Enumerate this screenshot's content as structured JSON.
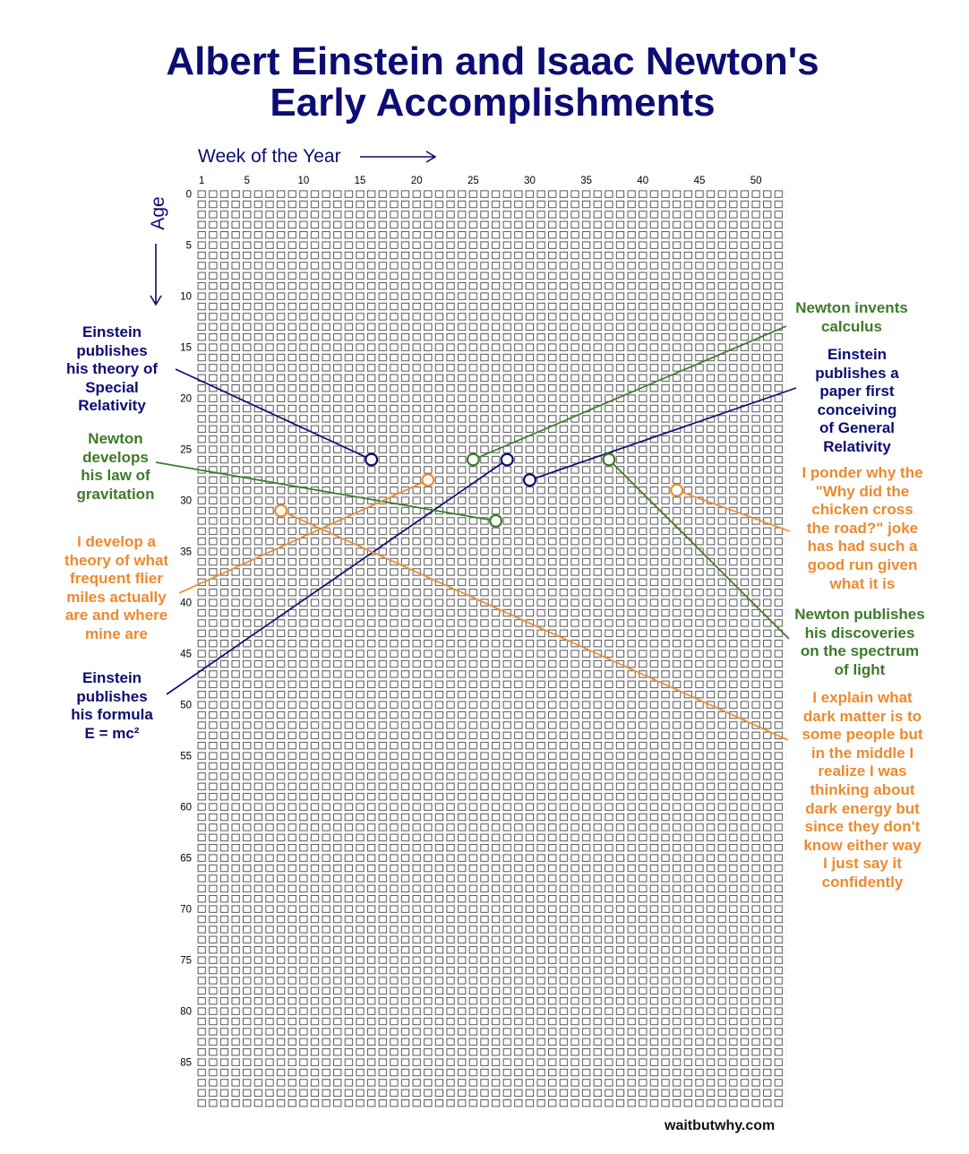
{
  "title": {
    "line1": "Albert Einstein and Isaac Newton's",
    "line2": "Early Accomplishments"
  },
  "colors": {
    "einstein": "#0c0c73",
    "newton": "#3d7a2a",
    "author": "#ec8a2e",
    "grid": "#444444"
  },
  "chart_data": {
    "type": "scatter",
    "xlabel": "Week of the Year",
    "ylabel": "Age",
    "x_ticks": [
      1,
      5,
      10,
      15,
      20,
      25,
      30,
      35,
      40,
      45,
      50
    ],
    "y_ticks": [
      0,
      5,
      10,
      15,
      20,
      25,
      30,
      35,
      40,
      45,
      50,
      55,
      60,
      65,
      70,
      75,
      80,
      85
    ],
    "xlim": [
      1,
      52
    ],
    "ylim": [
      0,
      89
    ],
    "grid": "one box per week of life",
    "series": [
      {
        "name": "Einstein",
        "color": "#0c0c73",
        "points": [
          {
            "week": 16,
            "age": 26,
            "label": "Einstein\npublishes\nhis theory of\nSpecial\nRelativity"
          },
          {
            "week": 28,
            "age": 26,
            "label": "Einstein\npublishes\nhis formula\nE = mc²"
          },
          {
            "week": 30,
            "age": 28,
            "label": "Einstein\npublishes a\npaper first\nconceiving\nof General\nRelativity"
          }
        ]
      },
      {
        "name": "Newton",
        "color": "#3d7a2a",
        "points": [
          {
            "week": 25,
            "age": 26,
            "label": "Newton invents\ncalculus"
          },
          {
            "week": 27,
            "age": 32,
            "label": "Newton\ndevelops\nhis law of\ngravitation"
          },
          {
            "week": 37,
            "age": 26,
            "label": "Newton publishes\nhis discoveries\non the spectrum\nof light"
          }
        ]
      },
      {
        "name": "I",
        "color": "#ec8a2e",
        "points": [
          {
            "week": 21,
            "age": 28,
            "label": "I develop a\ntheory of what\nfrequent flier\nmiles actually\nare and where\nmine are"
          },
          {
            "week": 8,
            "age": 31,
            "label": "I explain what\ndark matter is to\nsome people but\nin the middle I\nrealize I was\nthinking about\ndark energy but\nsince they don't\nknow either way\nI just say it\nconfidently"
          },
          {
            "week": 43,
            "age": 29,
            "label": "I ponder why the\n\"Why did the\nchicken cross\nthe road?\" joke\nhas had such a\ngood run given\nwhat it is"
          }
        ]
      }
    ]
  },
  "footer": "waitbutwhy.com"
}
